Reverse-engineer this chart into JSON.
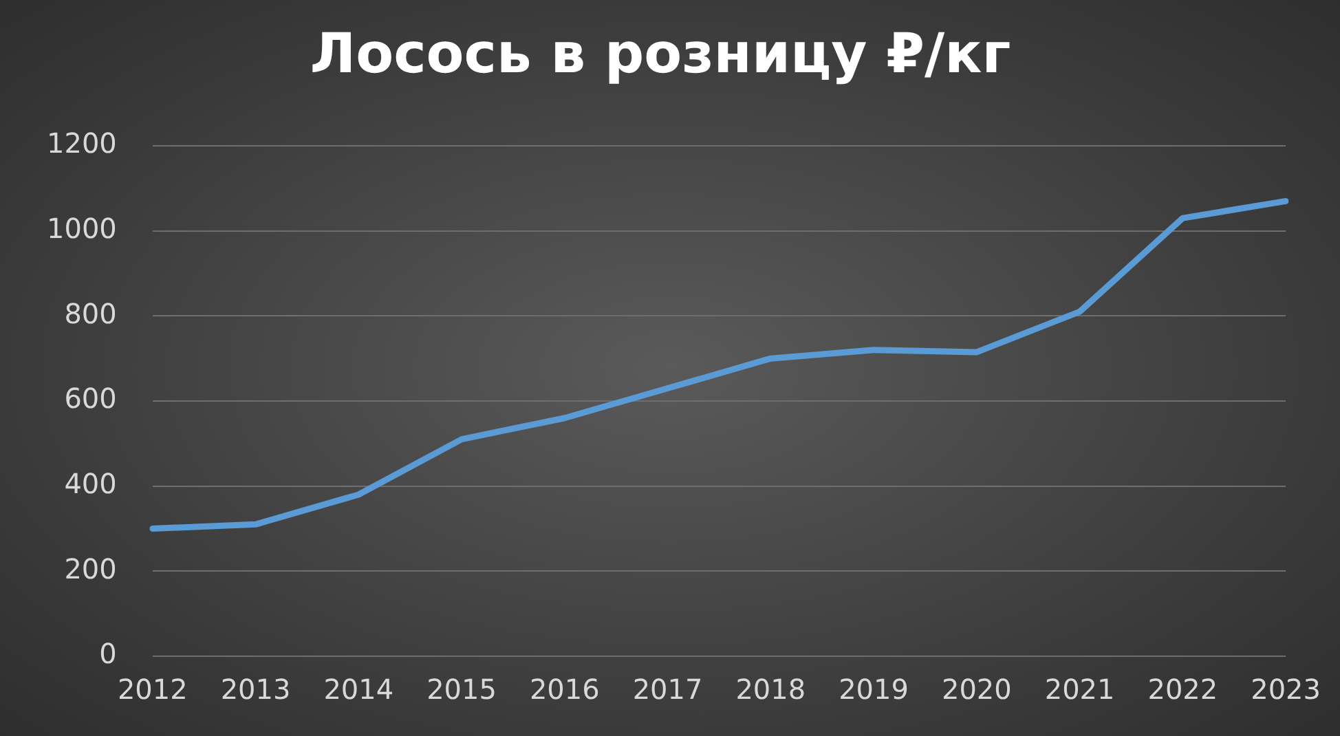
{
  "chart_data": {
    "type": "line",
    "title": "Лосось в розницу ₽/кг",
    "categories": [
      "2012",
      "2013",
      "2014",
      "2015",
      "2016",
      "2017",
      "2018",
      "2019",
      "2020",
      "2021",
      "2022",
      "2023"
    ],
    "series": [
      {
        "color": "#5b9bd5",
        "values": [
          300,
          310,
          380,
          510,
          560,
          630,
          700,
          720,
          715,
          810,
          1030,
          1070
        ]
      }
    ],
    "ylim": [
      0,
      1200
    ],
    "yticks": [
      0,
      200,
      400,
      600,
      800,
      1000,
      1200
    ],
    "grid": "y",
    "legend": false,
    "marker": "none",
    "line_style": "solid"
  }
}
